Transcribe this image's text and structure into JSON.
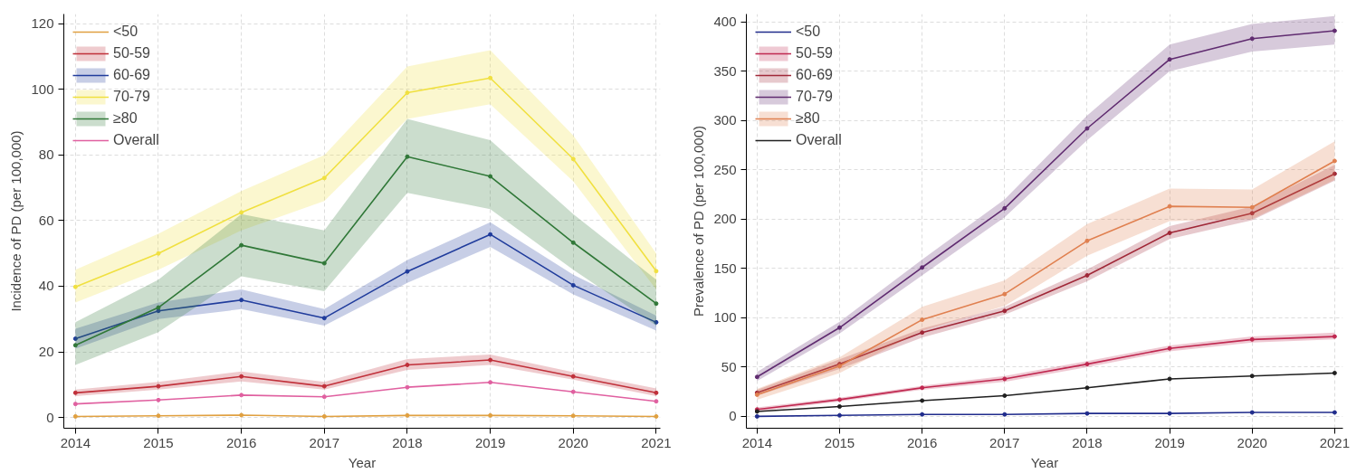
{
  "chart_data": [
    {
      "type": "line",
      "xlabel": "Year",
      "ylabel": "Incidence of PD (per 100,000)",
      "x": [
        2014,
        2015,
        2016,
        2017,
        2018,
        2019,
        2020,
        2021
      ],
      "xlim": [
        2013.86,
        2021.05
      ],
      "ylim": [
        -3.3,
        123
      ],
      "xticks": [
        2014,
        2015,
        2016,
        2017,
        2018,
        2019,
        2020,
        2021
      ],
      "yticks": [
        0,
        20,
        40,
        60,
        80,
        100,
        120
      ],
      "grid": true,
      "legend": "top left",
      "marker": "circle",
      "line_style": "solid",
      "series": [
        {
          "name": "<50",
          "color": "#e0a040",
          "values": [
            0.3,
            0.5,
            0.7,
            0.3,
            0.6,
            0.6,
            0.5,
            0.3
          ]
        },
        {
          "name": "50-59",
          "color": "#c0303a",
          "values": [
            7.5,
            9.5,
            12.5,
            9.5,
            16,
            17.5,
            12.5,
            7.5
          ],
          "lower": [
            6.5,
            8.5,
            11,
            8.5,
            14.5,
            16,
            11.5,
            6.5
          ],
          "upper": [
            8.5,
            10.8,
            14,
            10.8,
            17.8,
            19.2,
            13.8,
            8.8
          ]
        },
        {
          "name": "60-69",
          "color": "#203c9c",
          "values": [
            24,
            32.5,
            35.8,
            30.3,
            44.5,
            55.8,
            40.3,
            29
          ],
          "lower": [
            21,
            30,
            33,
            28,
            41,
            52,
            37.5,
            26.5
          ],
          "upper": [
            27,
            35,
            39,
            33,
            48,
            59.5,
            43.5,
            31
          ]
        },
        {
          "name": "70-79",
          "color": "#f0e040",
          "values": [
            39.8,
            50,
            62.5,
            73,
            99,
            103.5,
            78.8,
            44.6
          ],
          "lower": [
            35,
            45,
            57,
            66,
            91,
            95.5,
            72,
            39
          ],
          "upper": [
            45,
            56,
            69,
            80,
            107,
            112,
            86,
            50
          ]
        },
        {
          "name": "≥80",
          "color": "#307838",
          "values": [
            22,
            33.5,
            52.5,
            47,
            79.5,
            73.5,
            53.3,
            34.7
          ],
          "lower": [
            16,
            26,
            43,
            38.5,
            68.5,
            63.5,
            45,
            28
          ],
          "upper": [
            29,
            42,
            62,
            57,
            91,
            84.5,
            62,
            42
          ]
        },
        {
          "name": "Overall",
          "color": "#e060a0",
          "values": [
            4.1,
            5.3,
            6.8,
            6.3,
            9.2,
            10.7,
            7.8,
            4.9
          ]
        }
      ]
    },
    {
      "type": "line",
      "xlabel": "Year",
      "ylabel": "Prevalence of PD (per 100,000)",
      "x": [
        2014,
        2015,
        2016,
        2017,
        2018,
        2019,
        2020,
        2021
      ],
      "xlim": [
        2013.87,
        2021.1
      ],
      "ylim": [
        -12,
        408
      ],
      "xticks": [
        2014,
        2015,
        2016,
        2017,
        2018,
        2019,
        2020,
        2021
      ],
      "yticks": [
        0,
        50,
        100,
        150,
        200,
        250,
        300,
        350,
        400
      ],
      "grid": true,
      "legend": "top left",
      "marker": "circle",
      "line_style": "solid",
      "series": [
        {
          "name": "<50",
          "color": "#202c8c",
          "values": [
            0,
            1,
            2,
            2,
            3,
            3,
            4,
            4
          ]
        },
        {
          "name": "50-59",
          "color": "#c02850",
          "values": [
            7,
            17,
            29,
            38,
            53,
            69,
            78,
            81
          ],
          "lower": [
            5,
            15,
            27,
            35,
            50,
            66,
            75,
            78
          ],
          "upper": [
            9,
            19,
            31,
            41,
            56,
            72,
            81,
            85
          ]
        },
        {
          "name": "60-69",
          "color": "#a02838",
          "values": [
            24,
            53,
            85,
            107,
            143,
            186,
            206,
            246
          ],
          "lower": [
            21,
            48,
            80,
            103,
            137,
            180,
            199,
            239
          ],
          "upper": [
            27,
            58,
            89,
            111,
            149,
            193,
            213,
            255
          ]
        },
        {
          "name": "70-79",
          "color": "#602c70",
          "values": [
            40,
            90,
            151,
            211,
            292,
            362,
            383,
            391
          ],
          "lower": [
            36,
            84,
            143,
            202,
            280,
            350,
            370,
            377
          ],
          "upper": [
            45,
            96,
            159,
            220,
            305,
            377,
            398,
            406
          ]
        },
        {
          "name": "≥80",
          "color": "#e08050",
          "values": [
            22,
            51,
            98,
            124,
            178,
            213,
            212,
            259
          ],
          "lower": [
            17,
            44,
            87,
            112,
            163,
            198,
            200,
            240
          ],
          "upper": [
            28,
            60,
            111,
            138,
            195,
            231,
            230,
            279
          ]
        },
        {
          "name": "Overall",
          "color": "#202020",
          "values": [
            5,
            10,
            16,
            21,
            29,
            38,
            41,
            44
          ]
        }
      ]
    }
  ]
}
